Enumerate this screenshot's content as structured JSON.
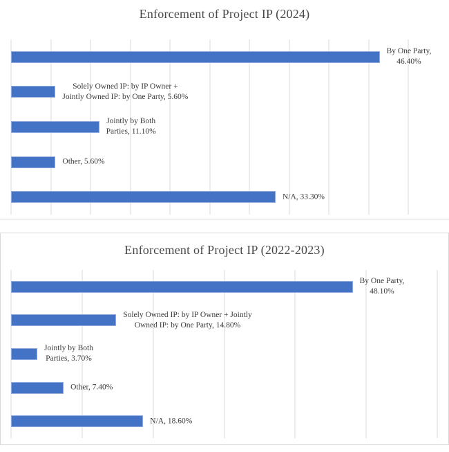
{
  "colors": {
    "bar": "#4472C4",
    "bar_edge": "#8FAADC",
    "gridline": "#D9D9D9",
    "frame": "#D9D9D9",
    "title": "#494949",
    "label": "#3a3a3a",
    "background": "#ffffff"
  },
  "chart_data": [
    {
      "type": "bar",
      "orientation": "horizontal",
      "title": "Enforcement of Project IP (2024)",
      "categories": [
        "By One Party",
        "Solely Owned IP: by IP Owner + Jointly Owned IP: by One Party",
        "Jointly by Both Parties",
        "Other",
        "N/A"
      ],
      "values": [
        46.4,
        5.6,
        11.1,
        5.6,
        33.3
      ],
      "labels": [
        [
          "By One Party,",
          "46.40%"
        ],
        [
          "Solely Owned IP: by IP Owner +",
          "Jointly Owned IP: by One Party, 5.60%"
        ],
        [
          "Jointly by Both",
          "Parties, 11.10%"
        ],
        [
          "Other, 5.60%"
        ],
        [
          "N/A, 33.30%"
        ]
      ],
      "xlim": [
        0,
        50
      ],
      "gridline_step": 5,
      "grid": true,
      "legend": "none",
      "axis_labels_visible": false
    },
    {
      "type": "bar",
      "orientation": "horizontal",
      "title": "Enforcement of Project IP (2022-2023)",
      "categories": [
        "By One Party",
        "Solely Owned IP: by IP Owner + Jointly Owned IP: by One Party",
        "Jointly by Both Parties",
        "Other",
        "N/A"
      ],
      "values": [
        48.1,
        14.8,
        3.7,
        7.4,
        18.6
      ],
      "labels": [
        [
          "By One Party,",
          "48.10%"
        ],
        [
          "Solely Owned IP: by IP Owner + Jointly",
          "Owned IP: by One Party, 14.80%"
        ],
        [
          "Jointly by Both",
          "Parties, 3.70%"
        ],
        [
          "Other, 7.40%"
        ],
        [
          "N/A, 18.60%"
        ]
      ],
      "xlim": [
        0,
        60
      ],
      "gridline_step": 10,
      "grid": true,
      "legend": "none",
      "axis_labels_visible": false
    }
  ]
}
